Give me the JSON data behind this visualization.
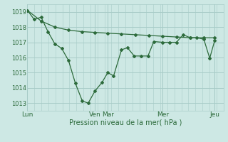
{
  "bg_color": "#cde8e4",
  "grid_color": "#a8ccc8",
  "line_color": "#2d6b3c",
  "ylabel_text": "Pression niveau de la mer( hPa )",
  "ylim": [
    1012.5,
    1019.5
  ],
  "yticks": [
    1013,
    1014,
    1015,
    1016,
    1017,
    1018,
    1019
  ],
  "day_positions": [
    0.0,
    0.345,
    0.41,
    0.69,
    0.955
  ],
  "day_labels": [
    "Lun",
    "Ven",
    "Mar",
    "Mer",
    "Jeu"
  ],
  "line1_x": [
    0.0,
    0.07,
    0.14,
    0.21,
    0.28,
    0.345,
    0.41,
    0.48,
    0.55,
    0.62,
    0.69,
    0.76,
    0.83,
    0.9,
    0.955
  ],
  "line1_y": [
    1019.1,
    1018.4,
    1018.0,
    1017.8,
    1017.7,
    1017.65,
    1017.6,
    1017.55,
    1017.5,
    1017.45,
    1017.4,
    1017.35,
    1017.3,
    1017.3,
    1017.3
  ],
  "line2_x": [
    0.0,
    0.035,
    0.07,
    0.105,
    0.14,
    0.175,
    0.21,
    0.245,
    0.28,
    0.31,
    0.345,
    0.38,
    0.41,
    0.44,
    0.48,
    0.51,
    0.545,
    0.58,
    0.615,
    0.645,
    0.69,
    0.725,
    0.76,
    0.795,
    0.83,
    0.865,
    0.9,
    0.93,
    0.955
  ],
  "line2_y": [
    1019.1,
    1018.5,
    1018.65,
    1017.7,
    1016.9,
    1016.6,
    1015.8,
    1014.3,
    1013.15,
    1013.0,
    1013.8,
    1014.35,
    1015.0,
    1014.8,
    1016.5,
    1016.65,
    1016.1,
    1016.1,
    1016.1,
    1017.05,
    1017.0,
    1017.0,
    1017.0,
    1017.5,
    1017.3,
    1017.3,
    1017.2,
    1015.95,
    1017.1
  ],
  "xmin": 0.0,
  "xmax": 1.0
}
